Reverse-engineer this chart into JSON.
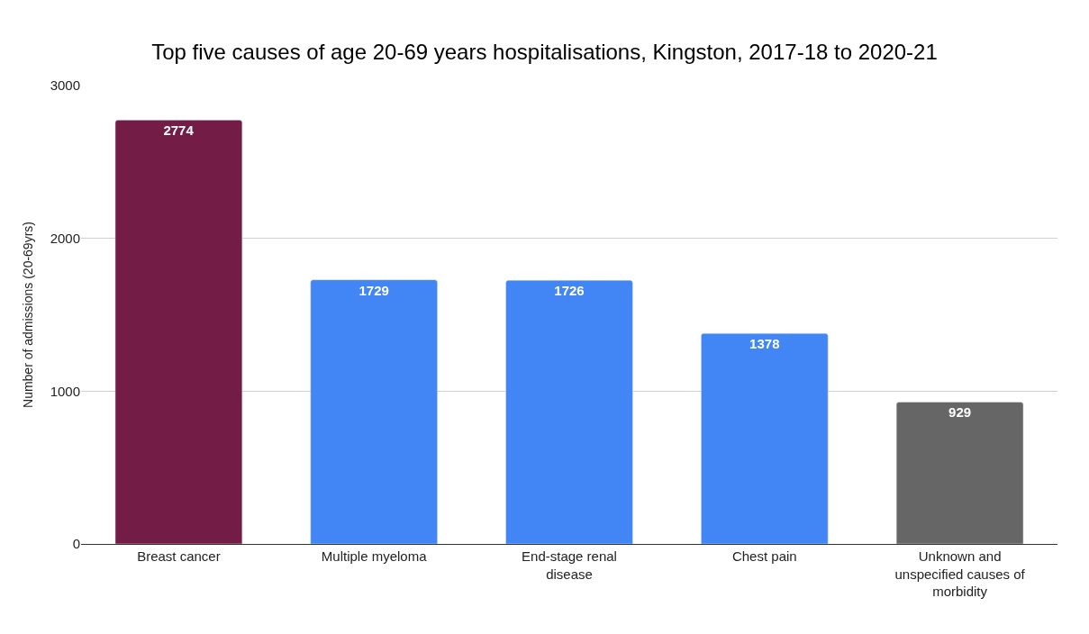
{
  "chart_data": {
    "type": "bar",
    "title": "Top five causes of age 20-69 years hospitalisations, Kingston, 2017-18 to 2020-21",
    "ylabel": "Number of admissions (20-69yrs)",
    "categories": [
      "Breast cancer",
      "Multiple myeloma",
      "End-stage renal disease",
      "Chest pain",
      "Unknown and unspecified causes of morbidity"
    ],
    "values": [
      2774,
      1729,
      1726,
      1378,
      929
    ],
    "colors": [
      "#731c45",
      "#4285f4",
      "#4285f4",
      "#4285f4",
      "#666666"
    ],
    "data_labels": true,
    "ylim": [
      0,
      3000
    ],
    "yticks": [
      0,
      1000,
      2000,
      3000
    ],
    "grid": "y"
  }
}
